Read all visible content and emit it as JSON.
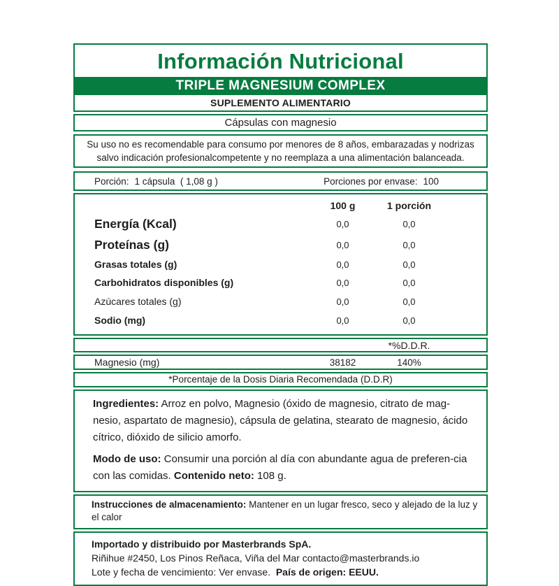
{
  "colors": {
    "green": "#077C40"
  },
  "header": {
    "title": "Información Nutricional",
    "product": "TRIPLE MAGNESIUM COMPLEX",
    "category": "SUPLEMENTO ALIMENTARIO",
    "subtitle": "Cápsulas con magnesio"
  },
  "warning": "Su uso no es recomendable para consumo por menores de 8 años, embarazadas y nodrizas salvo indicación profesionalcompetente y no reemplaza a una alimentación balanceada.",
  "serving": {
    "portion_label": "Porción:",
    "portion_value": "1 cápsula  ( 1,08 g )",
    "servings_label": "Porciones por envase:",
    "servings_value": "100"
  },
  "nutrition_table": {
    "col1": "100 g",
    "col2": "1 porción",
    "rows": [
      {
        "name": "Energía (Kcal)",
        "v1": "0,0",
        "v2": "0,0"
      },
      {
        "name": "Proteínas (g)",
        "v1": "0,0",
        "v2": "0,0"
      },
      {
        "name": "Grasas totales (g)",
        "v1": "0,0",
        "v2": "0,0"
      },
      {
        "name": "Carbohidratos disponibles (g)",
        "v1": "0,0",
        "v2": "0,0"
      },
      {
        "name": "Azúcares totales (g)",
        "v1": "0,0",
        "v2": "0,0"
      },
      {
        "name": "Sodio (mg)",
        "v1": "0,0",
        "v2": "0,0"
      }
    ]
  },
  "ddr": {
    "header": "*%D.D.R.",
    "mineral": {
      "name": "Magnesio (mg)",
      "amount": "38182",
      "percent": "140%"
    },
    "footnote": "*Porcentaje de la Dosis Diaria Recomendada (D.D.R)"
  },
  "ingredients": {
    "label": "Ingredientes:",
    "text": " Arroz en polvo, Magnesio (óxido de magnesio, citrato de mag-nesio, aspartato de magnesio), cápsula de gelatina, stearato de magnesio, ácido cítrico, dióxido de silicio amorfo."
  },
  "usage": {
    "label": "Modo de uso:",
    "text": " Consumir una porción al día con abundante agua de preferen-cia con las comidas. ",
    "net_label": "Contenido neto:",
    "net_value": " 108 g."
  },
  "storage": {
    "label": "Instrucciones de almacenamiento:",
    "text": "  Mantener en un lugar fresco, seco y alejado de la luz y el calor"
  },
  "distributor": {
    "line1": "Importado y distribuido por Masterbrands SpA.",
    "line2": "Riñihue #2450, Los Pinos Reñaca, Viña del Mar contacto@masterbrands.io",
    "line3_regular": "Lote y fecha de vencimiento: Ver envase.  ",
    "line3_bold": "País de origen: EEUU."
  }
}
